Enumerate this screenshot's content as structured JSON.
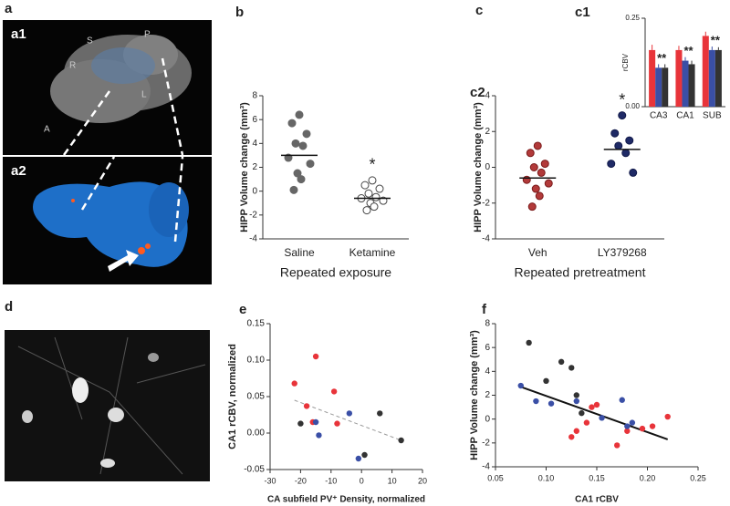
{
  "panels": {
    "a": "a",
    "a1": "a1",
    "a2": "a2",
    "c": "c",
    "d": "d"
  },
  "a1_annotations": [
    "S",
    "P",
    "R",
    "L",
    "A"
  ],
  "chart_data": [
    {
      "type": "strip",
      "panel": "b",
      "ylabel": "HIPP Volume change (mm³)",
      "xlabel": "Repeated exposure",
      "categories": [
        "Saline",
        "Ketamine"
      ],
      "groups": [
        {
          "color": "#666666",
          "fill": "#666666",
          "values": [
            6.4,
            5.7,
            4.8,
            4.0,
            3.8,
            2.8,
            2.3,
            1.5,
            1.0,
            0.1
          ],
          "mean": 3.0
        },
        {
          "color": "#444444",
          "fill": "#ffffff",
          "values": [
            0.9,
            0.5,
            0.2,
            -0.2,
            -0.5,
            -0.6,
            -0.8,
            -1.0,
            -1.3,
            -1.6
          ],
          "mean": -0.6,
          "label": "*"
        }
      ],
      "ylim": [
        -4,
        8
      ],
      "yticks": [
        -4,
        -2,
        0,
        2,
        4,
        6,
        8
      ]
    },
    {
      "type": "strip",
      "panel": "c2",
      "ylabel": "HIPP Volume change (mm³)",
      "xlabel": "Repeated pretreatment",
      "categories": [
        "Veh",
        "LY379268"
      ],
      "groups": [
        {
          "color": "#7a1a1a",
          "fill": "#b23a3a",
          "values": [
            1.2,
            0.8,
            0.2,
            0.0,
            -0.3,
            -0.7,
            -0.9,
            -1.2,
            -1.6,
            -2.2
          ],
          "mean": -0.6
        },
        {
          "color": "#121a4a",
          "fill": "#1f2a66",
          "values": [
            2.9,
            1.9,
            1.5,
            1.2,
            0.8,
            0.2,
            -0.3
          ],
          "mean": 1.0,
          "label": "*"
        }
      ],
      "ylim": [
        -4,
        4
      ],
      "yticks": [
        -4,
        -2,
        0,
        2,
        4
      ]
    },
    {
      "type": "bar",
      "panel": "c1",
      "ylabel": "rCBV",
      "categories": [
        "CA3",
        "CA1",
        "SUB"
      ],
      "series": [
        {
          "color": "#e8343a",
          "values": [
            0.16,
            0.16,
            0.2
          ],
          "errors": [
            0.015,
            0.012,
            0.012
          ]
        },
        {
          "color": "#3a4fa6",
          "values": [
            0.11,
            0.13,
            0.16
          ],
          "errors": [
            0.01,
            0.01,
            0.01
          ]
        },
        {
          "color": "#333333",
          "values": [
            0.11,
            0.12,
            0.16
          ],
          "errors": [
            0.01,
            0.01,
            0.008
          ]
        }
      ],
      "significance": [
        "**",
        "**",
        "**"
      ],
      "ylim": [
        0,
        0.25
      ],
      "yticks": [
        {
          "value": 0,
          "label": "0.00"
        },
        {
          "value": 0.25,
          "label": "0.25"
        }
      ]
    },
    {
      "type": "scatter",
      "panel": "e",
      "ylabel": "CA1 rCBV, normalized",
      "xlabel": "CA subfield PV⁺ Density, normalized",
      "series": [
        {
          "color": "#e8343a",
          "x": [
            -22,
            -18,
            -15,
            -9,
            -8,
            -16
          ],
          "y": [
            0.068,
            0.037,
            0.105,
            0.057,
            0.013,
            0.015
          ]
        },
        {
          "color": "#3a4fa6",
          "x": [
            -14,
            -15,
            -4,
            -1
          ],
          "y": [
            -0.003,
            0.015,
            0.027,
            -0.035
          ]
        },
        {
          "color": "#333333",
          "x": [
            -20,
            6,
            13,
            1
          ],
          "y": [
            0.013,
            0.027,
            -0.01,
            -0.03
          ]
        }
      ],
      "trendline": {
        "style": "dashed",
        "x": [
          -22,
          13
        ],
        "y": [
          0.045,
          -0.01
        ]
      },
      "xlim": [
        -30,
        20
      ],
      "xticks": [
        -30,
        -20,
        -10,
        0,
        10,
        20
      ],
      "ylim": [
        -0.05,
        0.15
      ],
      "yticks": [
        -0.05,
        {
          "value": 0,
          "label": "0.00"
        },
        0.05,
        {
          "value": 0.1,
          "label": "0.10"
        },
        0.15
      ]
    },
    {
      "type": "scatter",
      "panel": "f",
      "ylabel": "HIPP Volume change (mm³)",
      "xlabel": "CA1 rCBV",
      "series": [
        {
          "color": "#e8343a",
          "x": [
            0.125,
            0.13,
            0.14,
            0.15,
            0.145,
            0.18,
            0.195,
            0.205,
            0.17,
            0.22
          ],
          "y": [
            -1.5,
            -1.0,
            -0.3,
            1.2,
            1.0,
            -1.0,
            -0.8,
            -0.6,
            -2.2,
            0.2
          ]
        },
        {
          "color": "#3a4fa6",
          "x": [
            0.075,
            0.09,
            0.105,
            0.13,
            0.155,
            0.175,
            0.185,
            0.18
          ],
          "y": [
            2.8,
            1.5,
            1.3,
            1.5,
            0.1,
            1.6,
            -0.3,
            -0.6
          ]
        },
        {
          "color": "#333333",
          "x": [
            0.083,
            0.115,
            0.125,
            0.1,
            0.13,
            0.135
          ],
          "y": [
            6.4,
            4.8,
            4.3,
            3.2,
            2.0,
            0.5
          ]
        }
      ],
      "trendline": {
        "style": "solid",
        "x": [
          0.075,
          0.22
        ],
        "y": [
          2.7,
          -1.7
        ]
      },
      "xlim": [
        0.05,
        0.25
      ],
      "xticks": [
        0.05,
        {
          "value": 0.1,
          "label": "0.10"
        },
        0.15,
        {
          "value": 0.2,
          "label": "0.20"
        },
        0.25
      ],
      "ylim": [
        -4,
        8
      ],
      "yticks": [
        -4,
        -2,
        0,
        2,
        4,
        6,
        8
      ]
    }
  ]
}
